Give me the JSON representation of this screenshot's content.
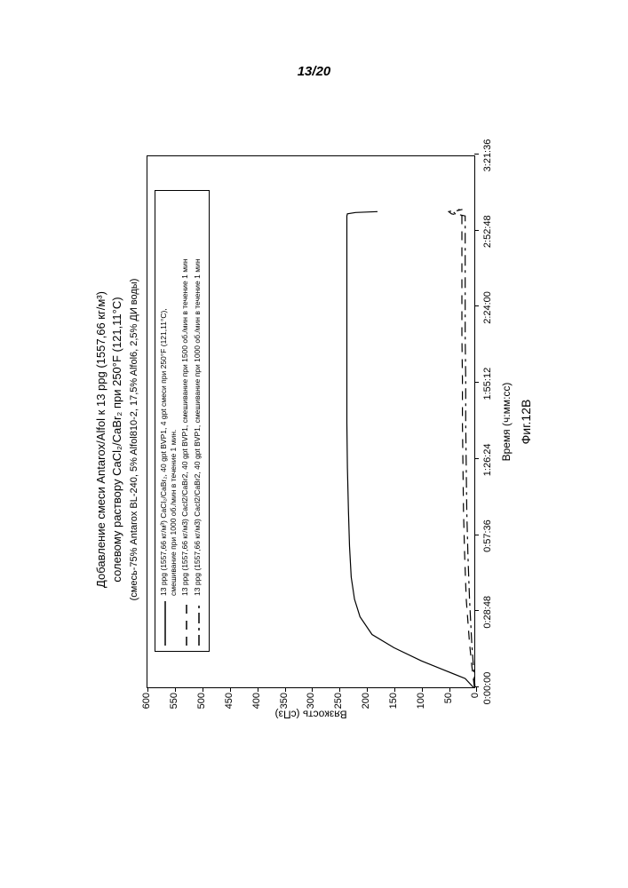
{
  "page_number": "13/20",
  "chart": {
    "type": "line",
    "title_line1": "Добавление смеси Antarox/Alfol к 13 ppg (1557,66 кг/м³)",
    "title_line2": "солевому раствору CaCl₂/CaBr₂ при 250°F (121,11°C)",
    "subtitle": "(смесь-75% Antarox BL-240, 5% Alfol810-2, 17,5% Alfol6, 2,5% ДИ воды)",
    "ylabel": "Вязкость (сПз)",
    "xlabel": "Время (ч:мм:сс)",
    "figure_label": "Фиг.12B",
    "ylim": [
      0,
      600
    ],
    "y_ticks": [
      0,
      50,
      100,
      150,
      200,
      250,
      300,
      350,
      400,
      450,
      500,
      550,
      600
    ],
    "x_ticks": [
      "0:00:00",
      "0:28:48",
      "0:57:36",
      "1:26:24",
      "1:55:12",
      "2:24:00",
      "2:52:48",
      "3:21:36"
    ],
    "x_range_seconds": [
      0,
      12096
    ],
    "background_color": "#ffffff",
    "border_color": "#000000",
    "title_fontsize": 13,
    "label_fontsize": 12,
    "tick_fontsize": 11,
    "legend_fontsize": 8.5,
    "legend": [
      {
        "style": "solid",
        "color": "#000000",
        "width": 1.5,
        "text_line1": "13 ppg (1557,66 кг/м³) CaCl₂/CaBr₂, 40 gpt BVP1, 4 gpt смеси при 250°F (121,11°C),",
        "text_line2": "смешивание при 1000 об./мин в течение 1 мин."
      },
      {
        "style": "dashed",
        "color": "#000000",
        "width": 1.5,
        "text_line1": "13 ppg (1557,66 кг/м3) Cacl2/CaBr2, 40 gpt BVP1, смешивание при 1500 об./мин в течение 1 мин"
      },
      {
        "style": "dashdot",
        "color": "#000000",
        "width": 1.5,
        "text_line1": "13 ppg (1557,66 кг/м3) Cacl2/CaBr2, 40 gpt BVP1, смешивание при 1000 об./мин в течение 1 мин"
      }
    ],
    "series": [
      {
        "name": "series1_solid",
        "style": "solid",
        "color": "#000000",
        "width": 1.2,
        "points": [
          [
            0,
            5
          ],
          [
            200,
            20
          ],
          [
            400,
            60
          ],
          [
            600,
            100
          ],
          [
            900,
            150
          ],
          [
            1200,
            190
          ],
          [
            1600,
            212
          ],
          [
            2000,
            222
          ],
          [
            2500,
            228
          ],
          [
            3200,
            231
          ],
          [
            4000,
            233
          ],
          [
            5000,
            235
          ],
          [
            6000,
            236
          ],
          [
            7000,
            236
          ],
          [
            8000,
            236
          ],
          [
            9000,
            236
          ],
          [
            10000,
            236
          ],
          [
            10700,
            236
          ],
          [
            10750,
            235
          ],
          [
            10780,
            220
          ],
          [
            10800,
            180
          ]
        ]
      },
      {
        "name": "series2_dashed",
        "style": "dashed",
        "color": "#000000",
        "width": 1.2,
        "points": [
          [
            0,
            3
          ],
          [
            500,
            8
          ],
          [
            1000,
            12
          ],
          [
            2000,
            18
          ],
          [
            3000,
            21
          ],
          [
            4000,
            23
          ],
          [
            5000,
            24
          ],
          [
            6000,
            25
          ],
          [
            7000,
            25
          ],
          [
            8000,
            26
          ],
          [
            9000,
            26
          ],
          [
            10000,
            26
          ],
          [
            10700,
            26
          ],
          [
            10750,
            45
          ],
          [
            10800,
            50
          ],
          [
            10850,
            30
          ]
        ]
      },
      {
        "name": "series3_dashdot",
        "style": "dashdot",
        "color": "#000000",
        "width": 1.2,
        "points": [
          [
            0,
            2
          ],
          [
            500,
            5
          ],
          [
            1000,
            8
          ],
          [
            2000,
            12
          ],
          [
            3000,
            15
          ],
          [
            4000,
            17
          ],
          [
            5000,
            18
          ],
          [
            6000,
            19
          ],
          [
            7000,
            19
          ],
          [
            8000,
            20
          ],
          [
            9000,
            20
          ],
          [
            10000,
            20
          ],
          [
            10700,
            20
          ],
          [
            10750,
            38
          ],
          [
            10800,
            42
          ],
          [
            10850,
            25
          ]
        ]
      }
    ]
  }
}
